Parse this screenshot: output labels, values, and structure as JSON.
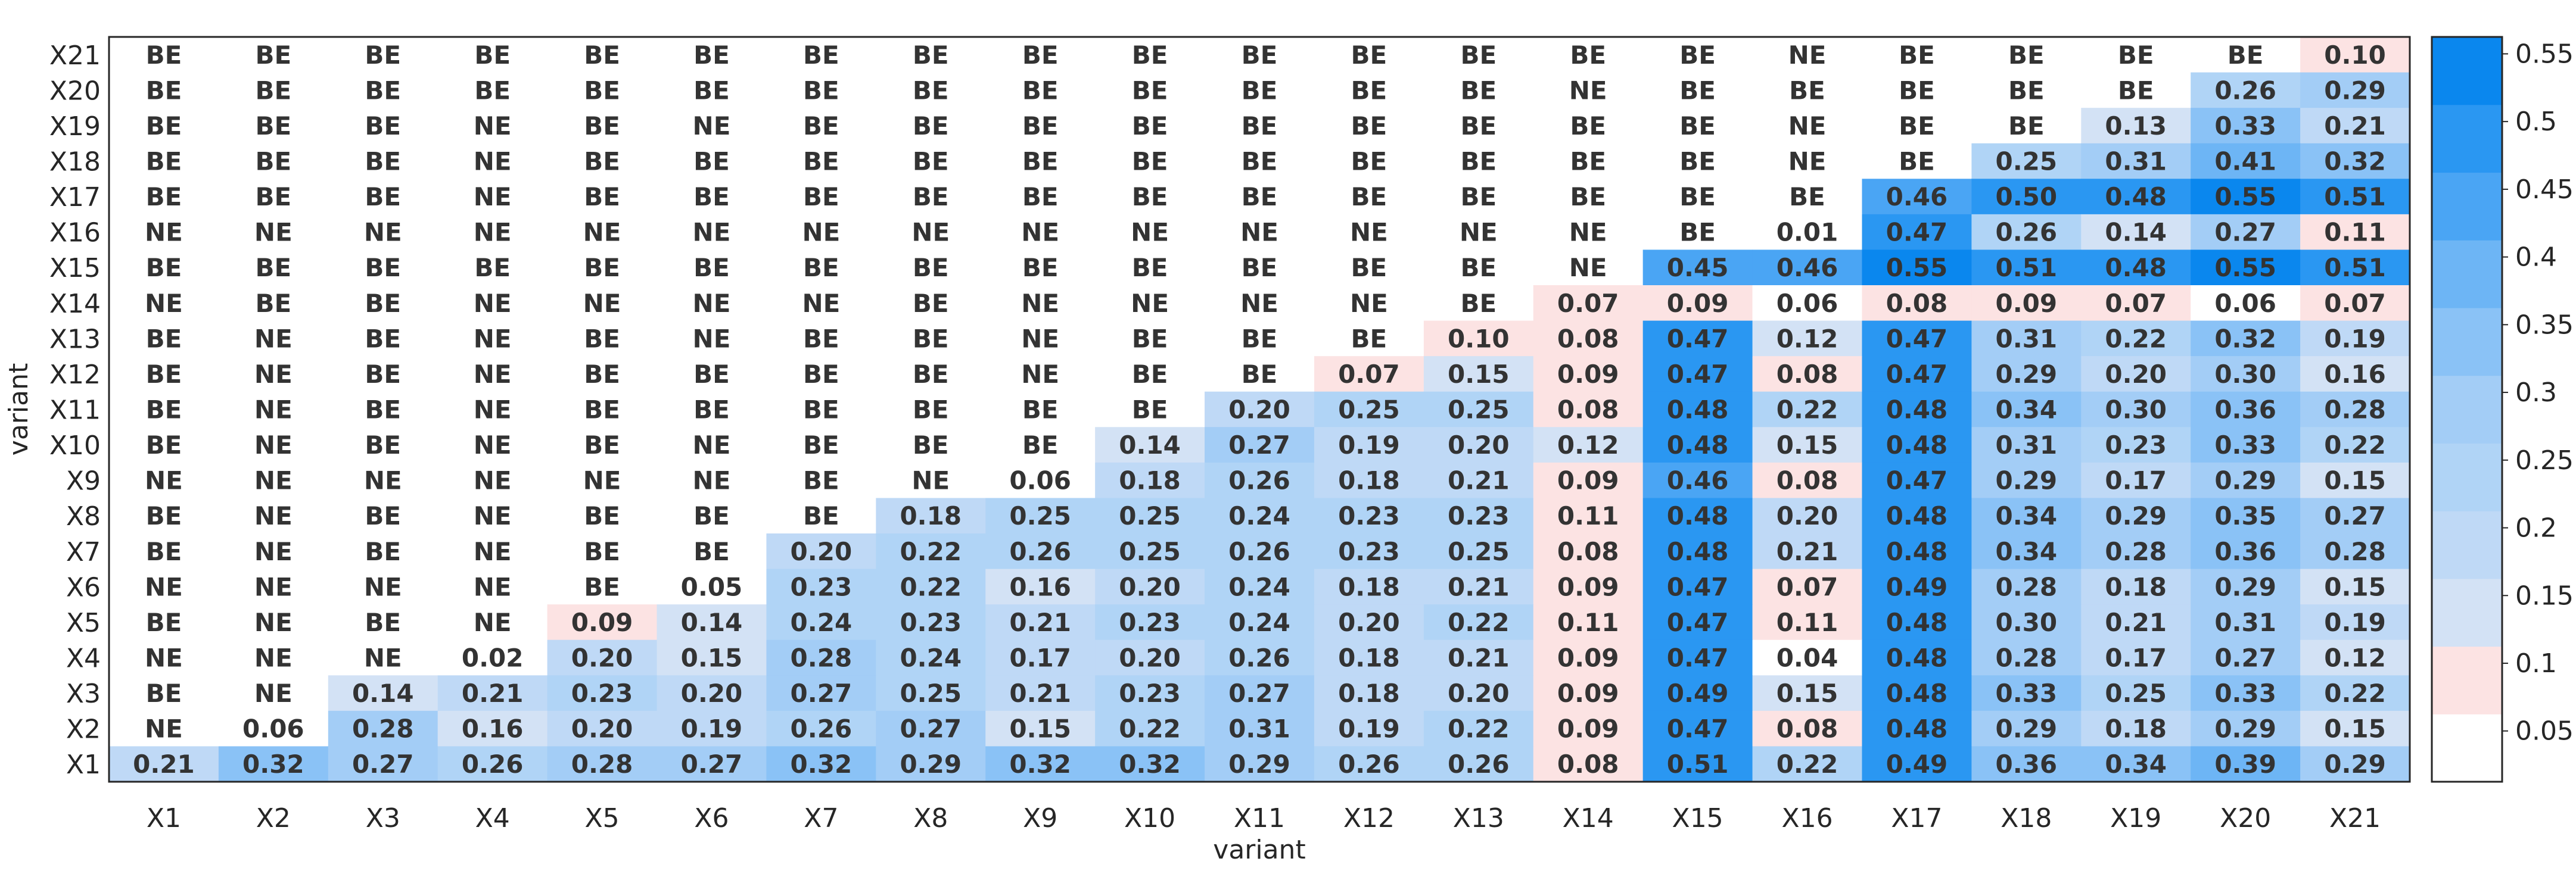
{
  "chart_data": {
    "type": "heatmap",
    "title": "",
    "xlabel": "variant",
    "ylabel": "variant",
    "x_categories": [
      "X1",
      "X2",
      "X3",
      "X4",
      "X5",
      "X6",
      "X7",
      "X8",
      "X9",
      "X10",
      "X11",
      "X12",
      "X13",
      "X14",
      "X15",
      "X16",
      "X17",
      "X18",
      "X19",
      "X20",
      "X21"
    ],
    "y_categories": [
      "X21",
      "X20",
      "X19",
      "X18",
      "X17",
      "X16",
      "X15",
      "X14",
      "X13",
      "X12",
      "X11",
      "X10",
      "X9",
      "X8",
      "X7",
      "X6",
      "X5",
      "X4",
      "X3",
      "X2",
      "X1"
    ],
    "cells": [
      [
        "BE",
        "BE",
        "BE",
        "BE",
        "BE",
        "BE",
        "BE",
        "BE",
        "BE",
        "BE",
        "BE",
        "BE",
        "BE",
        "BE",
        "BE",
        "NE",
        "BE",
        "BE",
        "BE",
        "BE",
        "0.10"
      ],
      [
        "BE",
        "BE",
        "BE",
        "BE",
        "BE",
        "BE",
        "BE",
        "BE",
        "BE",
        "BE",
        "BE",
        "BE",
        "BE",
        "NE",
        "BE",
        "BE",
        "BE",
        "BE",
        "BE",
        "0.26",
        "0.29"
      ],
      [
        "BE",
        "BE",
        "BE",
        "NE",
        "BE",
        "NE",
        "BE",
        "BE",
        "BE",
        "BE",
        "BE",
        "BE",
        "BE",
        "BE",
        "BE",
        "NE",
        "BE",
        "BE",
        "0.13",
        "0.33",
        "0.21"
      ],
      [
        "BE",
        "BE",
        "BE",
        "NE",
        "BE",
        "BE",
        "BE",
        "BE",
        "BE",
        "BE",
        "BE",
        "BE",
        "BE",
        "BE",
        "BE",
        "NE",
        "BE",
        "0.25",
        "0.31",
        "0.41",
        "0.32"
      ],
      [
        "BE",
        "BE",
        "BE",
        "NE",
        "BE",
        "BE",
        "BE",
        "BE",
        "BE",
        "BE",
        "BE",
        "BE",
        "BE",
        "BE",
        "BE",
        "BE",
        "0.46",
        "0.50",
        "0.48",
        "0.55",
        "0.51"
      ],
      [
        "NE",
        "NE",
        "NE",
        "NE",
        "NE",
        "NE",
        "NE",
        "NE",
        "NE",
        "NE",
        "NE",
        "NE",
        "NE",
        "NE",
        "BE",
        "0.01",
        "0.47",
        "0.26",
        "0.14",
        "0.27",
        "0.11"
      ],
      [
        "BE",
        "BE",
        "BE",
        "BE",
        "BE",
        "BE",
        "BE",
        "BE",
        "BE",
        "BE",
        "BE",
        "BE",
        "BE",
        "NE",
        "0.45",
        "0.46",
        "0.55",
        "0.51",
        "0.48",
        "0.55",
        "0.51"
      ],
      [
        "NE",
        "BE",
        "BE",
        "NE",
        "NE",
        "NE",
        "NE",
        "BE",
        "NE",
        "NE",
        "NE",
        "NE",
        "BE",
        "0.07",
        "0.09",
        "0.06",
        "0.08",
        "0.09",
        "0.07",
        "0.06",
        "0.07"
      ],
      [
        "BE",
        "NE",
        "BE",
        "NE",
        "BE",
        "NE",
        "BE",
        "BE",
        "NE",
        "BE",
        "BE",
        "BE",
        "0.10",
        "0.08",
        "0.47",
        "0.12",
        "0.47",
        "0.31",
        "0.22",
        "0.32",
        "0.19"
      ],
      [
        "BE",
        "NE",
        "BE",
        "NE",
        "BE",
        "BE",
        "BE",
        "BE",
        "NE",
        "BE",
        "BE",
        "0.07",
        "0.15",
        "0.09",
        "0.47",
        "0.08",
        "0.47",
        "0.29",
        "0.20",
        "0.30",
        "0.16"
      ],
      [
        "BE",
        "NE",
        "BE",
        "NE",
        "BE",
        "BE",
        "BE",
        "BE",
        "BE",
        "BE",
        "0.20",
        "0.25",
        "0.25",
        "0.08",
        "0.48",
        "0.22",
        "0.48",
        "0.34",
        "0.30",
        "0.36",
        "0.28"
      ],
      [
        "BE",
        "NE",
        "BE",
        "NE",
        "BE",
        "NE",
        "BE",
        "BE",
        "BE",
        "0.14",
        "0.27",
        "0.19",
        "0.20",
        "0.12",
        "0.48",
        "0.15",
        "0.48",
        "0.31",
        "0.23",
        "0.33",
        "0.22"
      ],
      [
        "NE",
        "NE",
        "NE",
        "NE",
        "NE",
        "NE",
        "BE",
        "NE",
        "0.06",
        "0.18",
        "0.26",
        "0.18",
        "0.21",
        "0.09",
        "0.46",
        "0.08",
        "0.47",
        "0.29",
        "0.17",
        "0.29",
        "0.15"
      ],
      [
        "BE",
        "NE",
        "BE",
        "NE",
        "BE",
        "BE",
        "BE",
        "0.18",
        "0.25",
        "0.25",
        "0.24",
        "0.23",
        "0.23",
        "0.11",
        "0.48",
        "0.20",
        "0.48",
        "0.34",
        "0.29",
        "0.35",
        "0.27"
      ],
      [
        "BE",
        "NE",
        "BE",
        "NE",
        "BE",
        "BE",
        "0.20",
        "0.22",
        "0.26",
        "0.25",
        "0.26",
        "0.23",
        "0.25",
        "0.08",
        "0.48",
        "0.21",
        "0.48",
        "0.34",
        "0.28",
        "0.36",
        "0.28"
      ],
      [
        "NE",
        "NE",
        "NE",
        "NE",
        "BE",
        "0.05",
        "0.23",
        "0.22",
        "0.16",
        "0.20",
        "0.24",
        "0.18",
        "0.21",
        "0.09",
        "0.47",
        "0.07",
        "0.49",
        "0.28",
        "0.18",
        "0.29",
        "0.15"
      ],
      [
        "BE",
        "NE",
        "BE",
        "NE",
        "0.09",
        "0.14",
        "0.24",
        "0.23",
        "0.21",
        "0.23",
        "0.24",
        "0.20",
        "0.22",
        "0.11",
        "0.47",
        "0.11",
        "0.48",
        "0.30",
        "0.21",
        "0.31",
        "0.19"
      ],
      [
        "NE",
        "NE",
        "NE",
        "0.02",
        "0.20",
        "0.15",
        "0.28",
        "0.24",
        "0.17",
        "0.20",
        "0.26",
        "0.18",
        "0.21",
        "0.09",
        "0.47",
        "0.04",
        "0.48",
        "0.28",
        "0.17",
        "0.27",
        "0.12"
      ],
      [
        "BE",
        "NE",
        "0.14",
        "0.21",
        "0.23",
        "0.20",
        "0.27",
        "0.25",
        "0.21",
        "0.23",
        "0.27",
        "0.18",
        "0.20",
        "0.09",
        "0.49",
        "0.15",
        "0.48",
        "0.33",
        "0.25",
        "0.33",
        "0.22"
      ],
      [
        "NE",
        "0.06",
        "0.28",
        "0.16",
        "0.20",
        "0.19",
        "0.26",
        "0.27",
        "0.15",
        "0.22",
        "0.31",
        "0.19",
        "0.22",
        "0.09",
        "0.47",
        "0.08",
        "0.48",
        "0.29",
        "0.18",
        "0.29",
        "0.15"
      ],
      [
        "0.21",
        "0.32",
        "0.27",
        "0.26",
        "0.28",
        "0.27",
        "0.32",
        "0.29",
        "0.32",
        "0.32",
        "0.29",
        "0.26",
        "0.26",
        "0.08",
        "0.51",
        "0.22",
        "0.49",
        "0.36",
        "0.34",
        "0.39",
        "0.29"
      ]
    ],
    "colorbar": {
      "ticks": [
        0.05,
        0.1,
        0.15,
        0.2,
        0.25,
        0.3,
        0.35,
        0.4,
        0.45,
        0.5,
        0.55
      ],
      "tick_labels": [
        "0.05",
        "0.1",
        "0.15",
        "0.2",
        "0.25",
        "0.3",
        "0.35",
        "0.4",
        "0.45",
        "0.5",
        "0.55"
      ],
      "range": [
        0.0125,
        0.5625
      ],
      "bin_colors": [
        "#ffffff",
        "#fce3e3",
        "#d3e2f5",
        "#bfd9f6",
        "#b0d4f6",
        "#a3cdf6",
        "#8ac2f6",
        "#6db5f5",
        "#4aa5f4",
        "#2a97f2",
        "#0a87ee"
      ],
      "bin_edges": [
        0.0125,
        0.0625,
        0.1125,
        0.1625,
        0.2125,
        0.2625,
        0.3125,
        0.3625,
        0.4125,
        0.4625,
        0.5125,
        0.5625
      ]
    },
    "grid": false,
    "legend": "colorbar-right"
  }
}
